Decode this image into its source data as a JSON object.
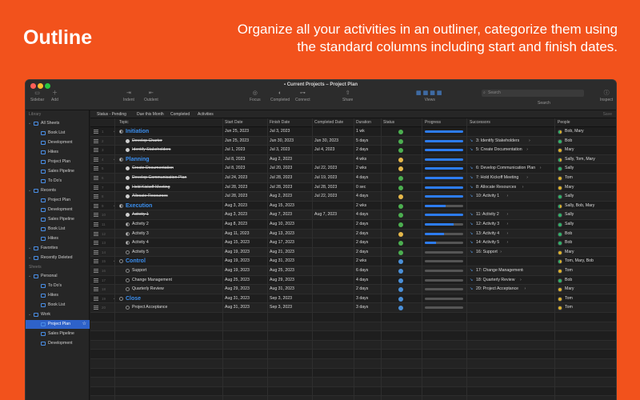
{
  "hero": {
    "title": "Outline",
    "subtitle": "Organize all your activities in an outliner, categorize them using the standard columns including start and finish dates."
  },
  "window": {
    "title": "Current Projects – Project Plan",
    "toolbar": [
      {
        "label": "Sidebar",
        "icon": "sidebar-icon"
      },
      {
        "label": "Add",
        "icon": "plus-icon"
      },
      {
        "label": "Indent",
        "icon": "indent-icon"
      },
      {
        "label": "Outdent",
        "icon": "outdent-icon"
      },
      {
        "label": "Focus",
        "icon": "focus-icon"
      },
      {
        "label": "Completed",
        "icon": "toggle-icon"
      },
      {
        "label": "Connect",
        "icon": "connect-icon"
      },
      {
        "label": "Share",
        "icon": "share-icon"
      },
      {
        "label": "Views",
        "icon": "views-icon"
      },
      {
        "label": "Search",
        "icon": "search-icon"
      },
      {
        "label": "Inspect",
        "icon": "info-icon"
      }
    ],
    "search_placeholder": "Search"
  },
  "sidebar": {
    "library_label": "Library",
    "sheets_label": "Sheets",
    "library": [
      {
        "label": "All Sheets",
        "level": 0
      },
      {
        "label": "Book List",
        "level": 1
      },
      {
        "label": "Development",
        "level": 1
      },
      {
        "label": "Hikes",
        "level": 1
      },
      {
        "label": "Project Plan",
        "level": 1
      },
      {
        "label": "Sales Pipeline",
        "level": 1
      },
      {
        "label": "To Do's",
        "level": 1
      },
      {
        "label": "Recents",
        "level": 0
      },
      {
        "label": "Project Plan",
        "level": 1
      },
      {
        "label": "Development",
        "level": 1
      },
      {
        "label": "Sales Pipeline",
        "level": 1
      },
      {
        "label": "Book List",
        "level": 1
      },
      {
        "label": "Hikes",
        "level": 1
      },
      {
        "label": "Favorites",
        "level": 0
      },
      {
        "label": "Recently Deleted",
        "level": 0
      }
    ],
    "sheets": [
      {
        "label": "Personal",
        "level": 0
      },
      {
        "label": "To Do's",
        "level": 1
      },
      {
        "label": "Hikes",
        "level": 1
      },
      {
        "label": "Book List",
        "level": 1
      },
      {
        "label": "Work",
        "level": 0
      },
      {
        "label": "Project Plan",
        "level": 1,
        "selected": true
      },
      {
        "label": "Sales Pipeline",
        "level": 1
      },
      {
        "label": "Development",
        "level": 1
      }
    ]
  },
  "filters": [
    "Status - Pending",
    "Due this Month",
    "Completed",
    "Activities"
  ],
  "filter_right": "Save",
  "columns": [
    "Topic",
    "Start Date",
    "Finish Date",
    "Completed Date",
    "Duration",
    "Status",
    "Progress",
    "Successors",
    "People"
  ],
  "rows": [
    {
      "num": "1",
      "topic": "Initiation",
      "group": true,
      "start": "Jun 25, 2023",
      "finish": "Jul 3, 2023",
      "completed": "",
      "duration": "1 wk",
      "status": "#4caf50",
      "progress": 100,
      "successor": "",
      "people": "Bob, Mary",
      "done": false
    },
    {
      "num": "2",
      "topic": "Develop Charter",
      "group": false,
      "start": "Jun 25, 2023",
      "finish": "Jun 30, 2023",
      "completed": "Jun 30, 2023",
      "duration": "5 days",
      "status": "#4caf50",
      "progress": 100,
      "successor": "3: Identify Stakeholders",
      "people": "Bob",
      "done": true
    },
    {
      "num": "3",
      "topic": "Identify Stakeholders",
      "group": false,
      "start": "Jul 1, 2023",
      "finish": "Jul 3, 2023",
      "completed": "Jul 4, 2023",
      "duration": "2 days",
      "status": "#4caf50",
      "progress": 100,
      "successor": "5: Create Documentation",
      "people": "Mary",
      "done": true
    },
    {
      "num": "4",
      "topic": "Planning",
      "group": true,
      "start": "Jul 8, 2023",
      "finish": "Aug 2, 2023",
      "completed": "",
      "duration": "4 wks",
      "status": "#e6b84a",
      "progress": 100,
      "successor": "",
      "people": "Sally, Tom, Mary",
      "done": false
    },
    {
      "num": "5",
      "topic": "Create Documentation",
      "group": false,
      "start": "Jul 8, 2023",
      "finish": "Jul 20, 2023",
      "completed": "Jul 22, 2023",
      "duration": "2 wks",
      "status": "#e6b84a",
      "progress": 100,
      "successor": "6: Develop Communication Plan",
      "people": "Sally",
      "done": true
    },
    {
      "num": "6",
      "topic": "Develop Communication Plan",
      "group": false,
      "start": "Jul 24, 2023",
      "finish": "Jul 28, 2023",
      "completed": "Jul 19, 2023",
      "duration": "4 days",
      "status": "#4caf50",
      "progress": 100,
      "successor": "7: Hold Kickoff Meeting",
      "people": "Tom",
      "done": true
    },
    {
      "num": "7",
      "topic": "Hold Kickoff Meeting",
      "group": false,
      "start": "Jul 28, 2023",
      "finish": "Jul 28, 2023",
      "completed": "Jul 28, 2023",
      "duration": "0 sec",
      "status": "#4caf50",
      "progress": 100,
      "successor": "8: Allocate Resources",
      "people": "Mary",
      "done": true
    },
    {
      "num": "8",
      "topic": "Allocate Resources",
      "group": false,
      "start": "Jul 28, 2023",
      "finish": "Aug 2, 2023",
      "completed": "Jul 22, 2023",
      "duration": "4 days",
      "status": "#e6b84a",
      "progress": 100,
      "successor": "10: Activity 1",
      "people": "Sally",
      "done": true
    },
    {
      "num": "9",
      "topic": "Execution",
      "group": true,
      "start": "Aug 3, 2023",
      "finish": "Aug 15, 2023",
      "completed": "",
      "duration": "2 wks",
      "status": "#4caf50",
      "progress": 55,
      "successor": "",
      "people": "Sally, Bob, Mary",
      "done": false
    },
    {
      "num": "10",
      "topic": "Activity 1",
      "group": false,
      "start": "Aug 3, 2023",
      "finish": "Aug 7, 2023",
      "completed": "Aug 7, 2023",
      "duration": "4 days",
      "status": "#4caf50",
      "progress": 100,
      "successor": "11: Activity 2",
      "people": "Sally",
      "done": true
    },
    {
      "num": "11",
      "topic": "Activity 2",
      "group": false,
      "start": "Aug 8, 2023",
      "finish": "Aug 10, 2023",
      "completed": "",
      "duration": "2 days",
      "status": "#4caf50",
      "progress": 75,
      "successor": "12: Activity 3",
      "people": "Sally",
      "done": false
    },
    {
      "num": "12",
      "topic": "Activity 3",
      "group": false,
      "start": "Aug 11, 2023",
      "finish": "Aug 13, 2023",
      "completed": "",
      "duration": "2 days",
      "status": "#e6b84a",
      "progress": 50,
      "successor": "13: Activity 4",
      "people": "Bob",
      "done": false
    },
    {
      "num": "13",
      "topic": "Activity 4",
      "group": false,
      "start": "Aug 15, 2023",
      "finish": "Aug 17, 2023",
      "completed": "",
      "duration": "2 days",
      "status": "#4caf50",
      "progress": 30,
      "successor": "14: Activity 5",
      "people": "Bob",
      "done": false
    },
    {
      "num": "14",
      "topic": "Activity 5",
      "group": false,
      "start": "Aug 19, 2023",
      "finish": "Aug 21, 2023",
      "completed": "",
      "duration": "2 days",
      "status": "#4caf50",
      "progress": 0,
      "successor": "16: Support",
      "people": "Mary",
      "done": false
    },
    {
      "num": "15",
      "topic": "Control",
      "group": true,
      "start": "Aug 19, 2023",
      "finish": "Aug 31, 2023",
      "completed": "",
      "duration": "2 wks",
      "status": "#4a90d9",
      "progress": 0,
      "successor": "",
      "people": "Tom, Mary, Bob",
      "done": false
    },
    {
      "num": "16",
      "topic": "Support",
      "group": false,
      "start": "Aug 19, 2023",
      "finish": "Aug 25, 2023",
      "completed": "",
      "duration": "6 days",
      "status": "#4a90d9",
      "progress": 0,
      "successor": "17: Change Management",
      "people": "Tom",
      "done": false
    },
    {
      "num": "17",
      "topic": "Change Management",
      "group": false,
      "start": "Aug 25, 2023",
      "finish": "Aug 29, 2023",
      "completed": "",
      "duration": "4 days",
      "status": "#4a90d9",
      "progress": 0,
      "successor": "18: Quarterly Review",
      "people": "Bob",
      "done": false
    },
    {
      "num": "18",
      "topic": "Quarterly Review",
      "group": false,
      "start": "Aug 29, 2023",
      "finish": "Aug 31, 2023",
      "completed": "",
      "duration": "2 days",
      "status": "#4a90d9",
      "progress": 0,
      "successor": "20: Project Acceptance",
      "people": "Mary",
      "done": false
    },
    {
      "num": "19",
      "topic": "Close",
      "group": true,
      "start": "Aug 31, 2023",
      "finish": "Sep 3, 2023",
      "completed": "",
      "duration": "3 days",
      "status": "#4a90d9",
      "progress": 0,
      "successor": "",
      "people": "Tom",
      "done": false
    },
    {
      "num": "20",
      "topic": "Project Acceptance",
      "group": false,
      "start": "Aug 31, 2023",
      "finish": "Sep 3, 2023",
      "completed": "",
      "duration": "3 days",
      "status": "#4a90d9",
      "progress": 0,
      "successor": "",
      "people": "Tom",
      "done": false
    }
  ]
}
